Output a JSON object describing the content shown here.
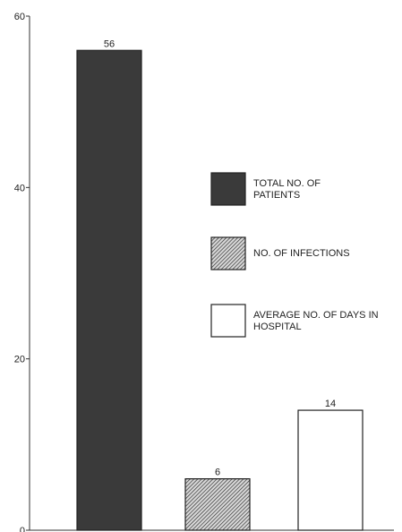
{
  "chart_data": {
    "type": "bar",
    "categories": [
      null,
      null,
      null
    ],
    "values": [
      56,
      6,
      14
    ],
    "legend": [
      "TOTAL NO. OF PATIENTS",
      "NO. OF INFECTIONS",
      "AVERAGE NO. OF DAYS IN HOSPITAL"
    ],
    "colors": [
      "#3a3a3a",
      "#9a9a9a",
      "#ffffff"
    ],
    "hatch": [
      false,
      true,
      false
    ],
    "ylim": [
      0,
      60
    ],
    "yticks": [
      0,
      20,
      40,
      60
    ]
  }
}
